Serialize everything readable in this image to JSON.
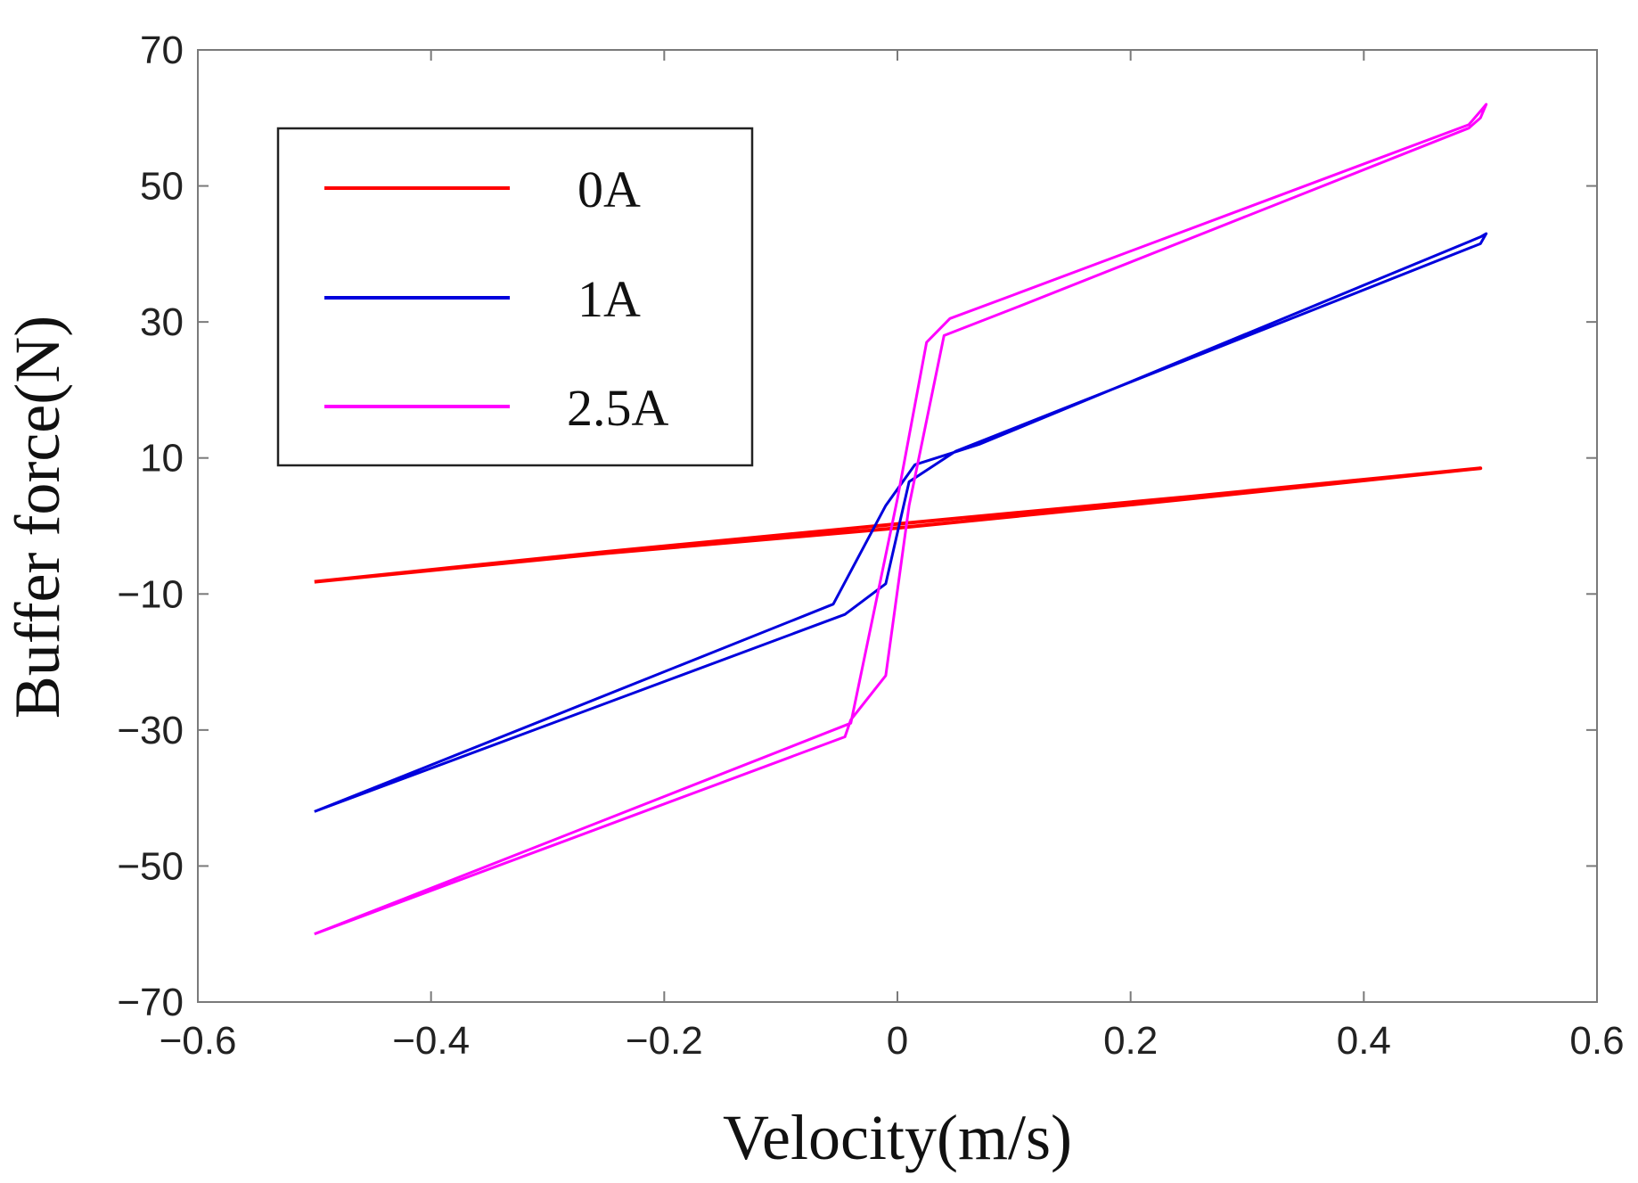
{
  "chart_data": {
    "type": "line",
    "title": "",
    "xlabel": "Velocity(m/s)",
    "ylabel": "Buffer force(N)",
    "xlim": [
      -0.6,
      0.6
    ],
    "ylim": [
      -70,
      70
    ],
    "xticks": [
      -0.6,
      -0.4,
      -0.2,
      0,
      0.2,
      0.4,
      0.6
    ],
    "xtick_labels": [
      "−0.6",
      "−0.4",
      "−0.2",
      "0",
      "0.2",
      "0.4",
      "0.6"
    ],
    "yticks": [
      -70,
      -50,
      -30,
      -10,
      10,
      30,
      50,
      70
    ],
    "ytick_labels": [
      "−70",
      "−50",
      "−30",
      "−10",
      "10",
      "30",
      "50",
      "70"
    ],
    "grid": false,
    "legend_position": "top-left",
    "series": [
      {
        "name": "0A",
        "color": "#ff0000",
        "x": [
          -0.5,
          -0.25,
          0,
          0.25,
          0.5,
          0.25,
          0,
          -0.25,
          -0.5
        ],
        "y": [
          -8.2,
          -4.0,
          -0.3,
          4.0,
          8.5,
          4.3,
          0.3,
          -3.8,
          -8.2
        ]
      },
      {
        "name": "1A",
        "color": "#0000dd",
        "x": [
          -0.5,
          -0.045,
          -0.01,
          0.01,
          0.05,
          0.5,
          0.505,
          0.5,
          0.07,
          0.015,
          -0.01,
          -0.055,
          -0.5
        ],
        "y": [
          -42,
          -13,
          -8.5,
          6.5,
          11,
          41.5,
          43,
          42.5,
          12,
          9,
          3,
          -11.5,
          -42
        ]
      },
      {
        "name": "2.5A",
        "color": "#ff00ff",
        "x": [
          -0.5,
          -0.045,
          -0.04,
          -0.01,
          0.01,
          0.04,
          0.1,
          0.49,
          0.5,
          0.505,
          0.5,
          0.49,
          0.1,
          0.045,
          0.025,
          0.0,
          -0.04,
          -0.5
        ],
        "y": [
          -60,
          -31,
          -28.5,
          -22,
          3,
          28,
          32,
          58.5,
          60,
          62,
          61,
          59,
          34,
          30.5,
          27,
          4,
          -29,
          -60
        ]
      }
    ]
  }
}
